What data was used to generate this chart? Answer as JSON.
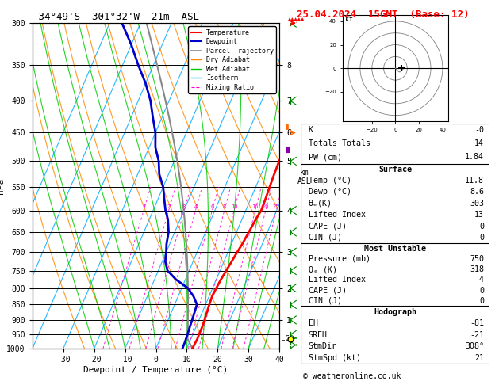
{
  "title_left": "-34°49'S  301°32'W  21m  ASL",
  "title_right": "25.04.2024  15GMT  (Base: 12)",
  "xlabel": "Dewpoint / Temperature (°C)",
  "ylabel_left": "hPa",
  "temp_color": "#ff0000",
  "dewp_color": "#0000cc",
  "parcel_color": "#888888",
  "dry_adiabat_color": "#ff8800",
  "wet_adiabat_color": "#00cc00",
  "isotherm_color": "#00aaff",
  "mixing_ratio_color": "#ff00cc",
  "pressure_levels": [
    300,
    350,
    400,
    450,
    500,
    550,
    600,
    650,
    700,
    750,
    800,
    850,
    900,
    950,
    1000
  ],
  "T_min": -40,
  "T_max": 40,
  "pmin": 300,
  "pmax": 1000,
  "skew": 45,
  "lcl_pressure": 965,
  "mixing_ratio_values": [
    1,
    2,
    3,
    4,
    6,
    8,
    10,
    16,
    20,
    25
  ],
  "km_labels": {
    "1": 900,
    "2": 800,
    "3": 700,
    "4": 600,
    "5": 500,
    "6": 450,
    "7": 400,
    "8": 350
  },
  "stats_K": "-0",
  "stats_TT": "14",
  "stats_PW": "1.84",
  "surf_temp": "11.8",
  "surf_dewp": "8.6",
  "surf_thetae": "303",
  "surf_li": "13",
  "surf_cape": "0",
  "surf_cin": "0",
  "mu_pressure": "750",
  "mu_thetae": "318",
  "mu_li": "4",
  "mu_cape": "0",
  "mu_cin": "0",
  "hodo_eh": "-81",
  "hodo_sreh": "-21",
  "hodo_stmdir": "308°",
  "hodo_stmspd": "21",
  "copyright": "© weatheronline.co.uk"
}
